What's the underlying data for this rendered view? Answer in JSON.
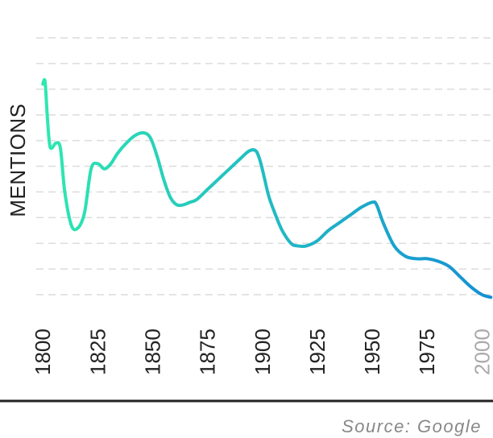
{
  "chart_data": {
    "type": "line",
    "ylabel": "MENTIONS",
    "xlabel": "",
    "title": "",
    "source": "Source: Google",
    "xlim": [
      1797,
      2005
    ],
    "ylim": [
      0,
      10
    ],
    "x_ticks": [
      "1800",
      "1825",
      "1850",
      "1875",
      "1900",
      "1925",
      "1950",
      "1975",
      "2000"
    ],
    "x_tick_colors": [
      "#222222",
      "#222222",
      "#222222",
      "#222222",
      "#222222",
      "#222222",
      "#222222",
      "#222222",
      "#aaaaaa"
    ],
    "gridlines": 11,
    "grid": true,
    "gradient": [
      "#2ee8b0",
      "#1590d4"
    ],
    "series": [
      {
        "x": [
          1800,
          1801,
          1802,
          1803,
          1804,
          1806,
          1808,
          1810,
          1813,
          1816,
          1819,
          1822,
          1825,
          1828,
          1831,
          1834,
          1838,
          1842,
          1846,
          1849,
          1852,
          1855,
          1858,
          1861,
          1864,
          1867,
          1870,
          1875,
          1880,
          1885,
          1890,
          1894,
          1897,
          1899,
          1901,
          1903,
          1906,
          1909,
          1913,
          1916,
          1920,
          1925,
          1930,
          1935,
          1940,
          1945,
          1950,
          1952,
          1955,
          1960,
          1965,
          1970,
          1975,
          1980,
          1985,
          1990,
          1995,
          2000,
          2004
        ],
        "y": [
          8.2,
          8.3,
          7.0,
          5.9,
          5.7,
          5.9,
          5.7,
          4.0,
          2.7,
          2.6,
          3.2,
          4.9,
          5.1,
          4.9,
          5.1,
          5.5,
          5.9,
          6.2,
          6.3,
          6.1,
          5.4,
          4.5,
          3.8,
          3.5,
          3.5,
          3.6,
          3.7,
          4.1,
          4.5,
          4.9,
          5.3,
          5.6,
          5.6,
          5.2,
          4.5,
          3.8,
          3.1,
          2.5,
          2.0,
          1.9,
          1.9,
          2.1,
          2.5,
          2.8,
          3.1,
          3.4,
          3.6,
          3.5,
          2.8,
          1.9,
          1.5,
          1.4,
          1.4,
          1.3,
          1.1,
          0.7,
          0.3,
          0.0,
          -0.1
        ]
      }
    ]
  }
}
